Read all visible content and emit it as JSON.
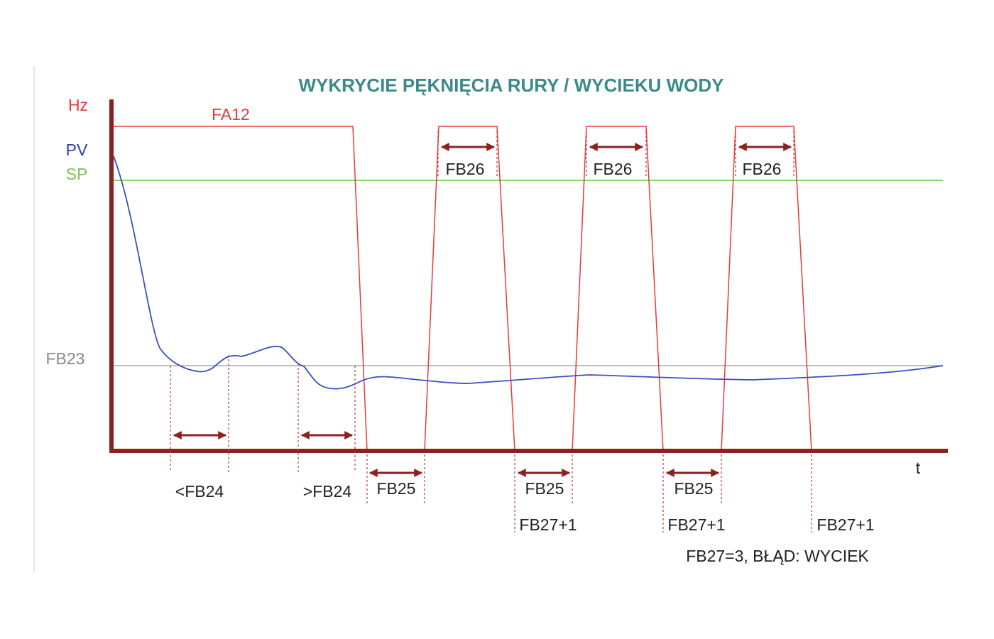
{
  "title": "WYKRYCIE PĘKNIĘCIA RURY / WYCIEKU WODY",
  "axis_labels": {
    "hz": "Hz",
    "pv": "PV",
    "sp": "SP",
    "fb23": "FB23",
    "t": "t"
  },
  "annotations": {
    "fa12": "FA12",
    "fb26": [
      "FB26",
      "FB26",
      "FB26"
    ],
    "fb24_less": "<FB24",
    "fb24_more": ">FB24",
    "fb25": [
      "FB25",
      "FB25",
      "FB25"
    ],
    "fb27": [
      "FB27+1",
      "FB27+1",
      "FB27+1"
    ],
    "error": "FB27=3, BŁĄD: WYCIEK"
  }
}
